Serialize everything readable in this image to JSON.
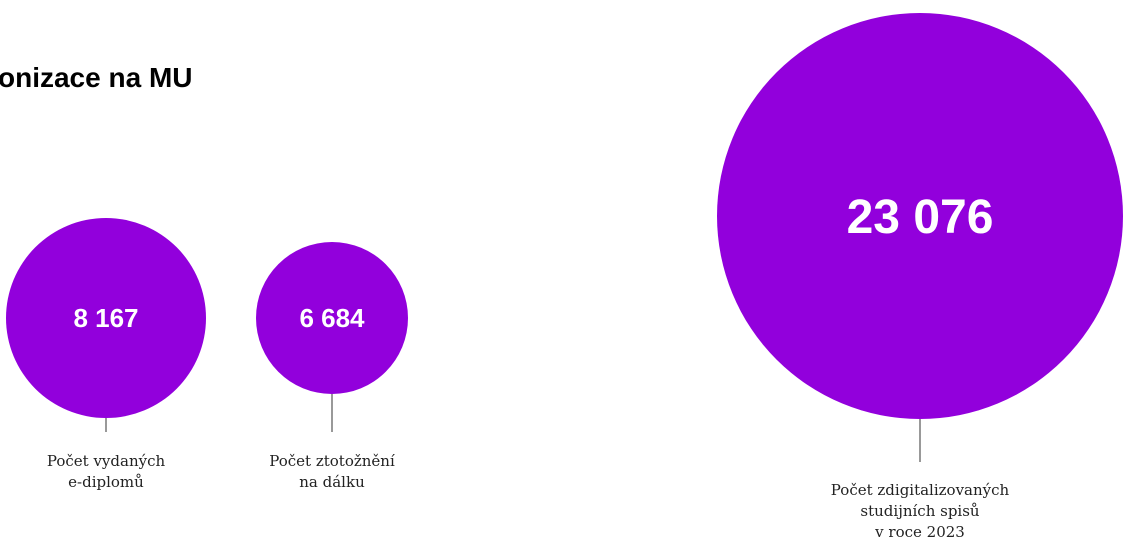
{
  "title": "onizace na MU",
  "colors": {
    "bubble": "#9200dc",
    "leader": "#333333",
    "value_text": "#ffffff"
  },
  "chart_data": {
    "type": "bubble",
    "title": "onizace na MU",
    "items": [
      {
        "value": 8167,
        "value_label": "8 167",
        "label_lines": [
          "Počet vydaných",
          "e-diplomů"
        ]
      },
      {
        "value": 6684,
        "value_label": "6 684",
        "label_lines": [
          "Počet ztotožnění",
          "na dálku"
        ]
      },
      {
        "value": 23076,
        "value_label": "23 076",
        "label_lines": [
          "Počet zdigitalizovaných",
          "studijních spisů",
          "v roce 2023"
        ]
      }
    ]
  }
}
